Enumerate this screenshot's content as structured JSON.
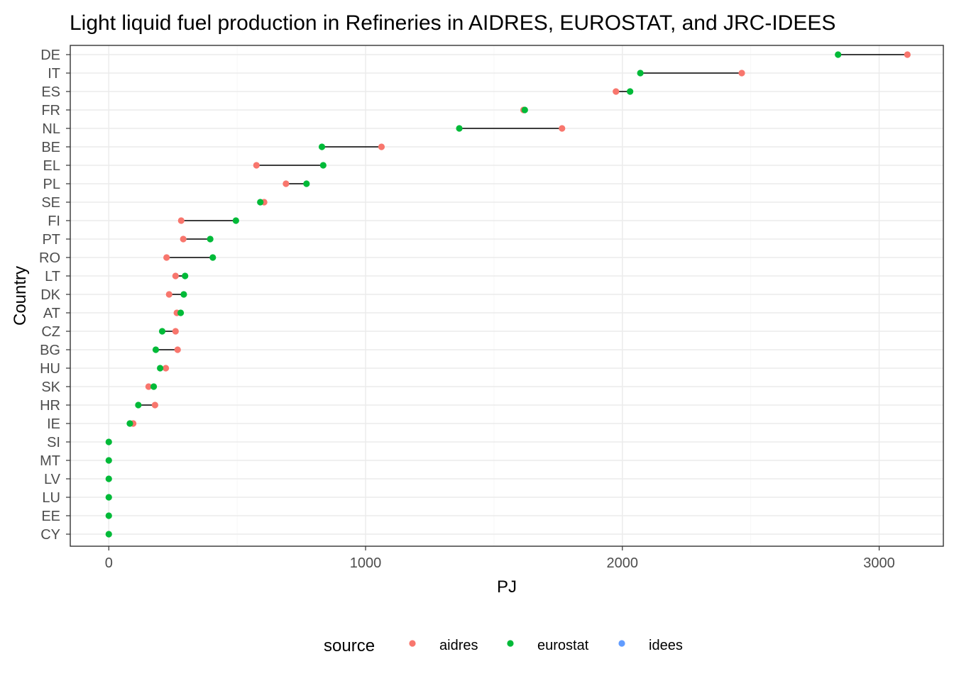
{
  "chart_data": {
    "type": "scatter",
    "title": "Light liquid fuel production in Refineries in AIDRES, EUROSTAT, and JRC-IDEES",
    "xlabel": "PJ",
    "ylabel": "Country",
    "xlim": [
      -150,
      3250
    ],
    "x_ticks": [
      0,
      1000,
      2000,
      3000
    ],
    "x_tick_labels": [
      "0",
      "1000",
      "2000",
      "3000"
    ],
    "grid": true,
    "legend": {
      "position": "bottom",
      "title": "source",
      "entries": [
        {
          "label": "aidres",
          "color": "#F8766D"
        },
        {
          "label": "eurostat",
          "color": "#00BA38"
        },
        {
          "label": "idees",
          "color": "#619CFF"
        }
      ]
    },
    "categories": [
      "DE",
      "IT",
      "ES",
      "FR",
      "NL",
      "BE",
      "EL",
      "PL",
      "SE",
      "FI",
      "PT",
      "RO",
      "LT",
      "DK",
      "AT",
      "CZ",
      "BG",
      "HU",
      "SK",
      "HR",
      "IE",
      "SI",
      "MT",
      "LV",
      "LU",
      "EE",
      "CY"
    ],
    "series": [
      {
        "name": "aidres",
        "color": "#F8766D",
        "values": [
          3110,
          2465,
          1975,
          1615,
          1765,
          1062,
          575,
          690,
          605,
          282,
          290,
          225,
          260,
          235,
          265,
          260,
          268,
          222,
          155,
          180,
          95,
          null,
          null,
          null,
          null,
          null,
          null
        ]
      },
      {
        "name": "eurostat",
        "color": "#00BA38",
        "values": [
          2840,
          2070,
          2030,
          1620,
          1365,
          830,
          835,
          770,
          590,
          495,
          395,
          405,
          297,
          292,
          280,
          208,
          183,
          200,
          175,
          115,
          82,
          0,
          0,
          0,
          0,
          0,
          0
        ]
      },
      {
        "name": "idees",
        "color": "#619CFF",
        "values": [
          null,
          null,
          null,
          null,
          null,
          null,
          null,
          null,
          null,
          null,
          null,
          null,
          null,
          null,
          null,
          null,
          null,
          null,
          null,
          null,
          null,
          null,
          null,
          null,
          null,
          null,
          null
        ]
      }
    ]
  }
}
